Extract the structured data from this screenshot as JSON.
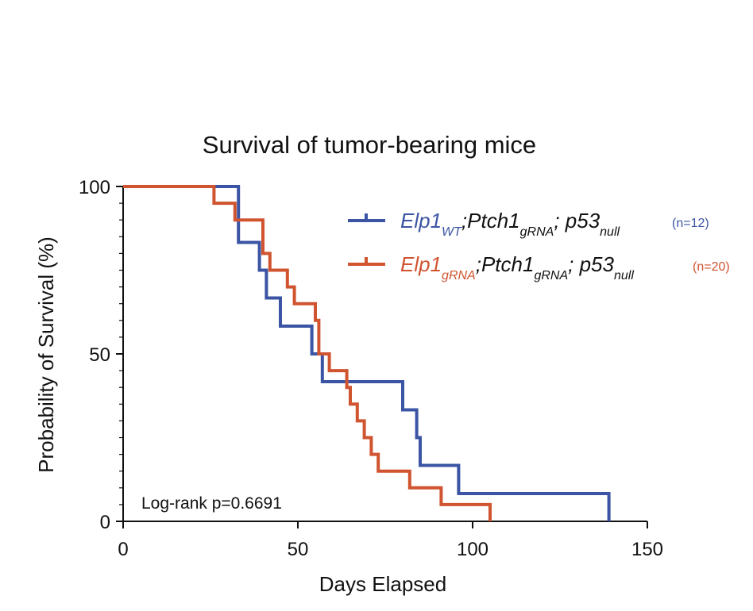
{
  "chart_data": {
    "type": "line",
    "subtype": "kaplan-meier-step",
    "title": "Survival of tumor-bearing mice",
    "xlabel": "Days Elapsed",
    "ylabel": "Probability of Survival (%)",
    "xlim": [
      0,
      150
    ],
    "ylim": [
      0,
      100
    ],
    "xticks": [
      "0",
      "50",
      "100",
      "150"
    ],
    "yticks": [
      "0",
      "50",
      "100"
    ],
    "legend_position": "top-right",
    "annotation": "Log-rank p=0.6691",
    "series": [
      {
        "name": "Elp1 WT;Ptch1 gRNA; p53 null",
        "legend_parts": [
          {
            "t": "Elp1",
            "sub": false
          },
          {
            "t": "WT",
            "sub": true
          },
          {
            "t": ";Ptch1",
            "sub": false
          },
          {
            "t": "gRNA",
            "sub": true
          },
          {
            "t": "; p53",
            "sub": false
          },
          {
            "t": "null",
            "sub": true
          }
        ],
        "n_label": "(n=12)",
        "color": "#3b55a4",
        "x": [
          0,
          33,
          39,
          41,
          45,
          54,
          57,
          80,
          84,
          85,
          96,
          139
        ],
        "y": [
          100,
          83.3,
          75,
          66.7,
          58.3,
          50,
          41.7,
          33.3,
          25,
          16.7,
          8.3,
          0
        ]
      },
      {
        "name": "Elp1 gRNA;Ptch1 gRNA; p53 null",
        "legend_parts": [
          {
            "t": "Elp1",
            "sub": false
          },
          {
            "t": "gRNA",
            "sub": true
          },
          {
            "t": ";Ptch1",
            "sub": false
          },
          {
            "t": "gRNA",
            "sub": true
          },
          {
            "t": "; p53",
            "sub": false
          },
          {
            "t": "null",
            "sub": true
          }
        ],
        "n_label": "(n=20)",
        "color": "#d0542f",
        "x": [
          0,
          26,
          32,
          40,
          42,
          47,
          49,
          55,
          56,
          59,
          64,
          65,
          67,
          69,
          71,
          73,
          82,
          91,
          105
        ],
        "y": [
          100,
          95,
          90,
          80,
          75,
          70,
          65,
          60,
          50,
          45,
          40,
          35,
          30,
          25,
          20,
          15,
          10,
          5,
          0
        ]
      }
    ]
  }
}
